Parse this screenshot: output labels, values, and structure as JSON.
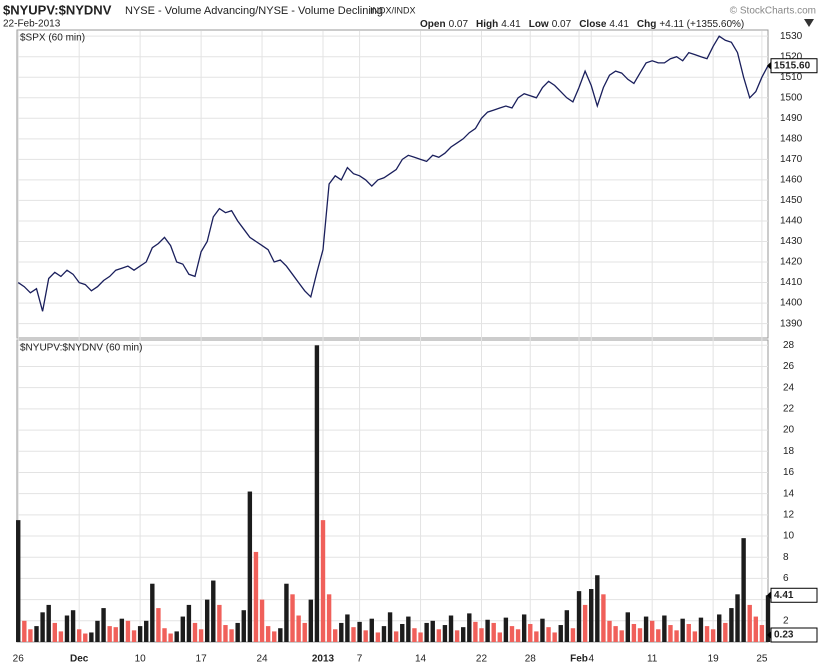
{
  "header": {
    "symbol": "$NYUPV:$NYDNV",
    "description": "NYSE - Volume Advancing/NYSE - Volume Declining",
    "exchange": "INDX/INDX",
    "copyright": "© StockCharts.com",
    "date": "22-Feb-2013",
    "stats": [
      {
        "label": "Open",
        "value": 0.07
      },
      {
        "label": "High",
        "value": 4.41
      },
      {
        "label": "Low",
        "value": 0.07
      },
      {
        "label": "Close",
        "value": 4.41
      },
      {
        "label": "Chg",
        "value": "+4.11 (+1355.60%)"
      }
    ]
  },
  "chart_data": [
    {
      "type": "line",
      "title": "$SPX (60 min)",
      "color": "#1a1f5c",
      "x": [
        0,
        0.5,
        1,
        1.5,
        2,
        2.5,
        3,
        3.5,
        4,
        4.5,
        5,
        5.5,
        6,
        6.5,
        7,
        7.5,
        8,
        8.5,
        9,
        9.5,
        10,
        10.5,
        11,
        11.5,
        12,
        12.5,
        13,
        13.5,
        14,
        14.5,
        15,
        15.5,
        16,
        16.5,
        17,
        17.5,
        18,
        18.5,
        19,
        19.5,
        20,
        20.5,
        21,
        21.5,
        22,
        22.5,
        23,
        23.5,
        24,
        24.5,
        25,
        25.5,
        26,
        26.5,
        27,
        27.5,
        28,
        28.5,
        29,
        29.5,
        30,
        30.5,
        31,
        31.5,
        32,
        32.5,
        33,
        33.5,
        34,
        34.5,
        35,
        35.5,
        36,
        36.5,
        37,
        37.5,
        38,
        38.5,
        39,
        39.5,
        40,
        40.5,
        41,
        41.5,
        42,
        42.5,
        43,
        43.5,
        44,
        44.5,
        45,
        45.5,
        46,
        46.5,
        47,
        47.5,
        48,
        48.5,
        49,
        49.5,
        50,
        50.5,
        51,
        51.5,
        52,
        52.5,
        53,
        53.5,
        54,
        54.5,
        55,
        55.5,
        56,
        56.5,
        57,
        57.5,
        58,
        58.5,
        59,
        59.5,
        60,
        60.5,
        61,
        61.5
      ],
      "values": [
        1410,
        1408,
        1405,
        1407,
        1396,
        1412,
        1415,
        1413,
        1416,
        1414,
        1410,
        1409,
        1406,
        1408,
        1411,
        1413,
        1416,
        1417,
        1418,
        1416,
        1418,
        1420,
        1427,
        1429,
        1432,
        1428,
        1420,
        1419,
        1414,
        1413,
        1425,
        1430,
        1442,
        1446,
        1444,
        1445,
        1440,
        1436,
        1432,
        1430,
        1428,
        1426,
        1420,
        1421,
        1418,
        1414,
        1410,
        1406,
        1403,
        1415,
        1426,
        1458,
        1462,
        1460,
        1466,
        1463,
        1462,
        1460,
        1457,
        1460,
        1461,
        1463,
        1465,
        1470,
        1472,
        1471,
        1470,
        1469,
        1472,
        1471,
        1473,
        1476,
        1478,
        1480,
        1483,
        1485,
        1490,
        1493,
        1494,
        1495,
        1496,
        1495,
        1500,
        1502,
        1501,
        1500,
        1505,
        1508,
        1506,
        1503,
        1500,
        1498,
        1505,
        1513,
        1506,
        1496,
        1505,
        1511,
        1513,
        1512,
        1509,
        1507,
        1512,
        1517,
        1518,
        1517,
        1517,
        1519,
        1520,
        1518,
        1522,
        1521,
        1520,
        1519,
        1525,
        1530,
        1528,
        1527,
        1522,
        1510,
        1500,
        1503,
        1510,
        1515.6
      ],
      "ylim": [
        1383,
        1533
      ],
      "yticks": [
        1390,
        1400,
        1410,
        1420,
        1430,
        1440,
        1450,
        1460,
        1470,
        1480,
        1490,
        1500,
        1510,
        1520,
        1530
      ],
      "last_label": {
        "value": 1515.6,
        "label": "1515.60"
      },
      "grid": true
    },
    {
      "type": "bar",
      "title": "$NYUPV:$NYDNV (60 min)",
      "up_color": "#1c1c1c",
      "down_color": "#f0605a",
      "x": [
        0,
        0.5,
        1,
        1.5,
        2,
        2.5,
        3,
        3.5,
        4,
        4.5,
        5,
        5.5,
        6,
        6.5,
        7,
        7.5,
        8,
        8.5,
        9,
        9.5,
        10,
        10.5,
        11,
        11.5,
        12,
        12.5,
        13,
        13.5,
        14,
        14.5,
        15,
        15.5,
        16,
        16.5,
        17,
        17.5,
        18,
        18.5,
        19,
        19.5,
        20,
        20.5,
        21,
        21.5,
        22,
        22.5,
        23,
        23.5,
        24,
        24.5,
        25,
        25.5,
        26,
        26.5,
        27,
        27.5,
        28,
        28.5,
        29,
        29.5,
        30,
        30.5,
        31,
        31.5,
        32,
        32.5,
        33,
        33.5,
        34,
        34.5,
        35,
        35.5,
        36,
        36.5,
        37,
        37.5,
        38,
        38.5,
        39,
        39.5,
        40,
        40.5,
        41,
        41.5,
        42,
        42.5,
        43,
        43.5,
        44,
        44.5,
        45,
        45.5,
        46,
        46.5,
        47,
        47.5,
        48,
        48.5,
        49,
        49.5,
        50,
        50.5,
        51,
        51.5,
        52,
        52.5,
        53,
        53.5,
        54,
        54.5,
        55,
        55.5,
        56,
        56.5,
        57,
        57.5,
        58,
        58.5,
        59,
        59.5,
        60,
        60.5,
        61,
        61.5
      ],
      "values": [
        11.5,
        2.0,
        1.2,
        1.5,
        2.8,
        3.5,
        1.8,
        1.0,
        2.5,
        3.0,
        1.2,
        0.8,
        0.9,
        2.0,
        3.2,
        1.5,
        1.4,
        2.2,
        2.0,
        1.1,
        1.5,
        2.0,
        5.5,
        3.2,
        1.3,
        0.8,
        1.0,
        2.4,
        3.5,
        1.8,
        1.2,
        4.0,
        5.8,
        3.5,
        1.6,
        1.2,
        1.8,
        3.0,
        14.2,
        8.5,
        4.0,
        1.5,
        1.0,
        1.3,
        5.5,
        4.5,
        2.5,
        1.8,
        4.0,
        28.0,
        11.5,
        4.5,
        1.2,
        1.8,
        2.6,
        1.4,
        1.9,
        1.1,
        2.2,
        0.9,
        1.5,
        2.8,
        1.0,
        1.7,
        2.4,
        1.3,
        0.9,
        1.8,
        2.0,
        1.2,
        1.6,
        2.5,
        1.1,
        1.4,
        2.7,
        1.9,
        1.3,
        2.1,
        1.8,
        0.9,
        2.3,
        1.5,
        1.2,
        2.6,
        1.7,
        1.0,
        2.2,
        1.4,
        0.9,
        1.6,
        3.0,
        1.3,
        4.8,
        3.5,
        5.0,
        6.3,
        4.5,
        2.0,
        1.5,
        1.1,
        2.8,
        1.7,
        1.3,
        2.4,
        2.0,
        1.2,
        2.5,
        1.6,
        1.1,
        2.2,
        1.7,
        1.0,
        2.3,
        1.5,
        1.2,
        2.6,
        1.8,
        3.2,
        4.5,
        9.8,
        3.5,
        2.4,
        1.6,
        4.41
      ],
      "ylim": [
        0,
        28.5
      ],
      "yticks": [
        2,
        4,
        6,
        8,
        10,
        12,
        14,
        16,
        18,
        20,
        22,
        24,
        26,
        28
      ],
      "xlim": [
        -0.1,
        61.5
      ],
      "xticks": [
        {
          "value": 0,
          "label": "26"
        },
        {
          "value": 5,
          "label": "Dec"
        },
        {
          "value": 10,
          "label": "10"
        },
        {
          "value": 15,
          "label": "17"
        },
        {
          "value": 20,
          "label": "24"
        },
        {
          "value": 25,
          "label": "2013"
        },
        {
          "value": 28,
          "label": "7"
        },
        {
          "value": 33,
          "label": "14"
        },
        {
          "value": 38,
          "label": "22"
        },
        {
          "value": 42,
          "label": "28"
        },
        {
          "value": 46,
          "label": "Feb"
        },
        {
          "value": 47,
          "label": "4"
        },
        {
          "value": 52,
          "label": "11"
        },
        {
          "value": 57,
          "label": "19"
        },
        {
          "value": 61,
          "label": "25"
        }
      ],
      "last_label": {
        "value": 4.41,
        "label": "4.41"
      },
      "low_label": {
        "value": 0.23,
        "label": "0.23"
      },
      "grid": true
    }
  ]
}
